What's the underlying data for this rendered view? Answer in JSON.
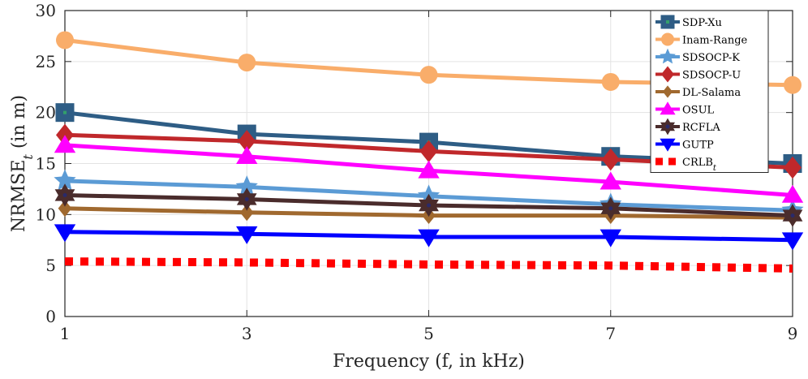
{
  "chart_data": {
    "type": "line",
    "title": "",
    "xlabel": "Frequency (f, in kHz)",
    "ylabel": "NRMSE_t (in m)",
    "x": [
      1,
      3,
      5,
      7,
      9
    ],
    "xlim": [
      1,
      9
    ],
    "ylim": [
      0,
      30
    ],
    "xticks": [
      "1",
      "3",
      "5",
      "7",
      "9"
    ],
    "yticks": [
      "0",
      "5",
      "10",
      "15",
      "20",
      "25",
      "30"
    ],
    "grid": true,
    "legend_position": "top-right",
    "series": [
      {
        "name": "SDP-Xu",
        "color": "#2e5d85",
        "marker": "square",
        "dashed": false,
        "values": [
          20.0,
          17.9,
          17.1,
          15.7,
          15.0
        ]
      },
      {
        "name": "Inam-Range",
        "color": "#f9ad6a",
        "marker": "circle",
        "dashed": false,
        "values": [
          27.1,
          24.9,
          23.7,
          23.0,
          22.7
        ]
      },
      {
        "name": "SDSOCP-K",
        "color": "#5b9bd5",
        "marker": "star",
        "dashed": false,
        "values": [
          13.3,
          12.7,
          11.8,
          11.0,
          10.4
        ]
      },
      {
        "name": "SDSOCP-U",
        "color": "#c0282b",
        "marker": "diamond",
        "dashed": false,
        "values": [
          17.8,
          17.2,
          16.2,
          15.4,
          14.6
        ]
      },
      {
        "name": "DL-Salama",
        "color": "#a0692f",
        "marker": "diamond-small",
        "dashed": false,
        "values": [
          10.6,
          10.2,
          9.9,
          9.9,
          9.7
        ]
      },
      {
        "name": "OSUL",
        "color": "#ff00ff",
        "marker": "triangle-up",
        "dashed": false,
        "values": [
          16.8,
          15.7,
          14.3,
          13.2,
          11.9
        ]
      },
      {
        "name": "RCFLA",
        "color": "#4a2c2c",
        "marker": "hexagram",
        "dashed": false,
        "values": [
          11.9,
          11.5,
          10.9,
          10.6,
          9.9
        ]
      },
      {
        "name": "GUTP",
        "color": "#0000ff",
        "marker": "triangle-down",
        "dashed": false,
        "values": [
          8.3,
          8.1,
          7.8,
          7.8,
          7.5
        ]
      },
      {
        "name": "CRLB_t",
        "color": "#ff0000",
        "marker": "none",
        "dashed": true,
        "values": [
          5.4,
          5.3,
          5.1,
          5.0,
          4.7
        ]
      }
    ]
  }
}
